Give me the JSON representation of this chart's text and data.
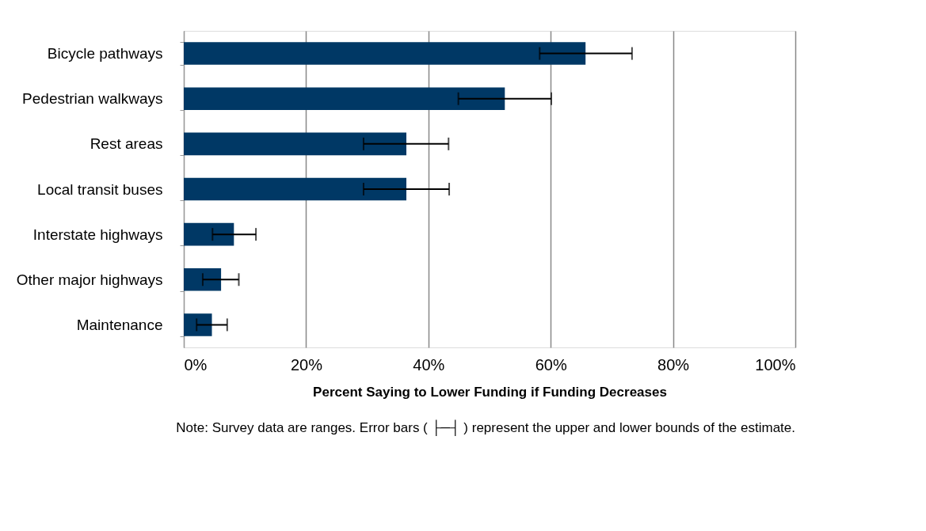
{
  "chart_data": {
    "type": "bar",
    "orientation": "horizontal",
    "categories": [
      "Bicycle pathways",
      "Pedestrian walkways",
      "Rest areas",
      "Local transit buses",
      "Interstate highways",
      "Other major highways",
      "Maintenance"
    ],
    "values": [
      65.7,
      52.5,
      36.4,
      36.4,
      8.2,
      6.1,
      4.6
    ],
    "errors": [
      [
        58.2,
        73.3
      ],
      [
        44.9,
        60.1
      ],
      [
        29.4,
        43.3
      ],
      [
        29.4,
        43.4
      ],
      [
        4.7,
        11.8
      ],
      [
        3.1,
        9.0
      ],
      [
        2.1,
        7.1
      ]
    ],
    "color": "#003865",
    "xlim": [
      0,
      100
    ],
    "xticks": [
      {
        "value": 0,
        "label": "0%"
      },
      {
        "value": 20,
        "label": "20%"
      },
      {
        "value": 40,
        "label": "40%"
      },
      {
        "value": 60,
        "label": "60%"
      },
      {
        "value": 80,
        "label": "80%"
      },
      {
        "value": 100,
        "label": "100%"
      }
    ],
    "xlabel": "Percent Saying to Lower Funding if Funding Decreases",
    "grid": "x",
    "annotations": [
      "Note: Survey data are ranges. Error bars ( ├─┤ ) represent the upper and lower bounds of the estimate."
    ]
  }
}
